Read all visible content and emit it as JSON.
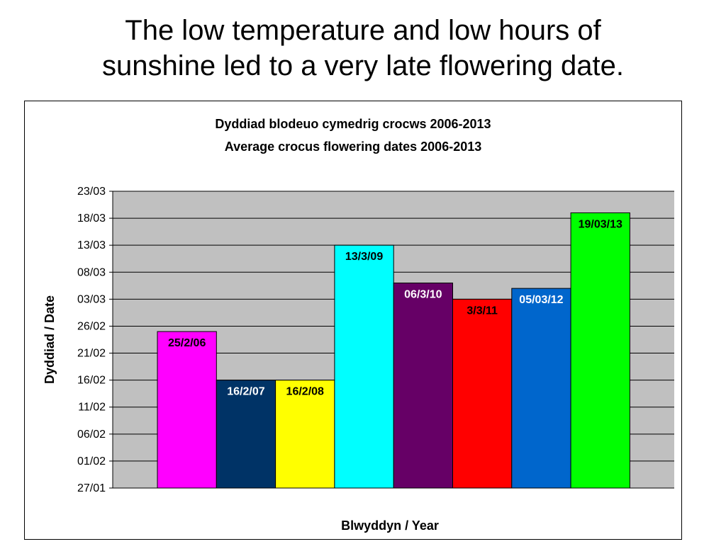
{
  "slide": {
    "title_line1": "The low temperature and low hours of",
    "title_line2": "sunshine led to a very late flowering date."
  },
  "chart_data": {
    "type": "bar",
    "title": "Dyddiad blodeuo cymedrig crocws  2006-2013",
    "subtitle": "Average crocus flowering dates 2006-2013",
    "xlabel": "Blwyddyn / Year",
    "ylabel": "Dyddiad / Date",
    "y_unit": "day-of-year date (dd/mm)",
    "ylim": [
      27,
      82
    ],
    "y_ticks": [
      {
        "value": 27,
        "label": "27/01"
      },
      {
        "value": 32,
        "label": "01/02"
      },
      {
        "value": 37,
        "label": "06/02"
      },
      {
        "value": 42,
        "label": "11/02"
      },
      {
        "value": 47,
        "label": "16/02"
      },
      {
        "value": 52,
        "label": "21/02"
      },
      {
        "value": 57,
        "label": "26/02"
      },
      {
        "value": 62,
        "label": "03/03"
      },
      {
        "value": 67,
        "label": "08/03"
      },
      {
        "value": 72,
        "label": "13/03"
      },
      {
        "value": 77,
        "label": "18/03"
      },
      {
        "value": 82,
        "label": "23/03"
      }
    ],
    "grid": true,
    "legend": "none",
    "bars": [
      {
        "label": "25/2/06",
        "value": 56,
        "color": "#ff00ff",
        "label_color": "#000000"
      },
      {
        "label": "16/2/07",
        "value": 47,
        "color": "#003366",
        "label_color": "#ffffff"
      },
      {
        "label": "16/2/08",
        "value": 47,
        "color": "#ffff00",
        "label_color": "#000000"
      },
      {
        "label": "13/3/09",
        "value": 72,
        "color": "#00ffff",
        "label_color": "#000000"
      },
      {
        "label": "06/3/10",
        "value": 65,
        "color": "#660066",
        "label_color": "#ffffff"
      },
      {
        "label": "3/3/11",
        "value": 62,
        "color": "#ff0000",
        "label_color": "#000000"
      },
      {
        "label": "05/03/12",
        "value": 64,
        "color": "#0066cc",
        "label_color": "#ffffff"
      },
      {
        "label": "19/03/13",
        "value": 78,
        "color": "#00ff00",
        "label_color": "#000000"
      }
    ],
    "plot_background": "#c0c0c0"
  }
}
